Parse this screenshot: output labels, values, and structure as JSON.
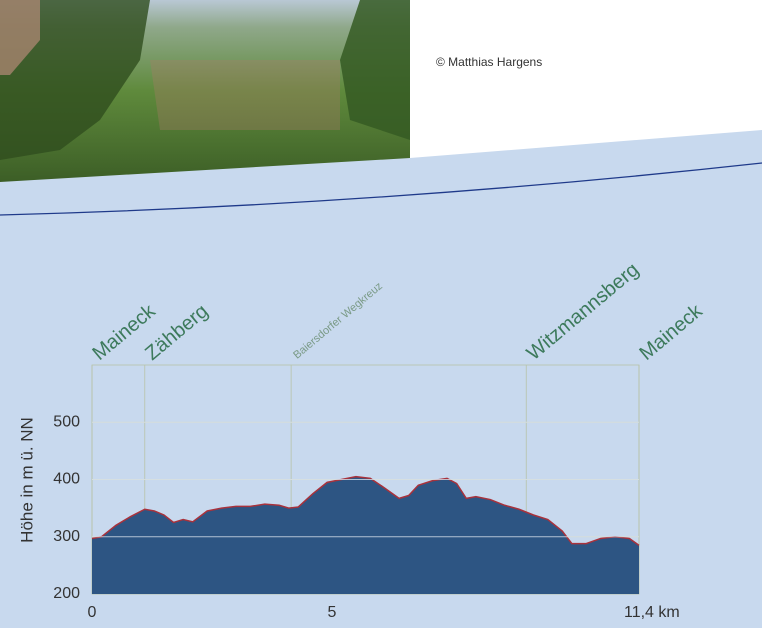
{
  "credit": "© Matthias Hargens",
  "chart_data": {
    "type": "area",
    "y_label": "Höhe in m ü. NN",
    "x": [
      0,
      0.2,
      0.5,
      0.8,
      1.1,
      1.3,
      1.5,
      1.7,
      1.9,
      2.1,
      2.4,
      2.7,
      3.0,
      3.3,
      3.6,
      3.9,
      4.1,
      4.3,
      4.6,
      4.9,
      5.2,
      5.5,
      5.8,
      6.1,
      6.4,
      6.6,
      6.8,
      7.1,
      7.4,
      7.6,
      7.8,
      8.0,
      8.3,
      8.6,
      8.9,
      9.2,
      9.5,
      9.8,
      10.0,
      10.3,
      10.6,
      10.9,
      11.2,
      11.4
    ],
    "values": [
      297,
      300,
      320,
      335,
      348,
      345,
      338,
      325,
      330,
      326,
      345,
      350,
      353,
      353,
      357,
      355,
      350,
      352,
      375,
      395,
      400,
      405,
      402,
      385,
      367,
      372,
      390,
      398,
      402,
      393,
      367,
      370,
      365,
      355,
      348,
      338,
      330,
      310,
      288,
      288,
      297,
      300,
      297,
      285
    ],
    "color": "#2d5583",
    "line_color": "#a8323c",
    "xlim": [
      0,
      11.4
    ],
    "xticks": [
      0,
      5,
      {
        "value": 11.4,
        "label": "11,4 km"
      }
    ],
    "ylim": [
      200,
      600
    ],
    "yticks": [
      200,
      300,
      400,
      500
    ],
    "grid": true,
    "waypoints": [
      {
        "name": "Maineck",
        "x": 0
      },
      {
        "name": "Zähberg",
        "x": 1.1
      },
      {
        "name": "Baiersdorfer Wegkreuz",
        "x": 4.15
      },
      {
        "name": "Witzmannsberg",
        "x": 9.05
      },
      {
        "name": "Maineck",
        "x": 11.4
      }
    ]
  }
}
